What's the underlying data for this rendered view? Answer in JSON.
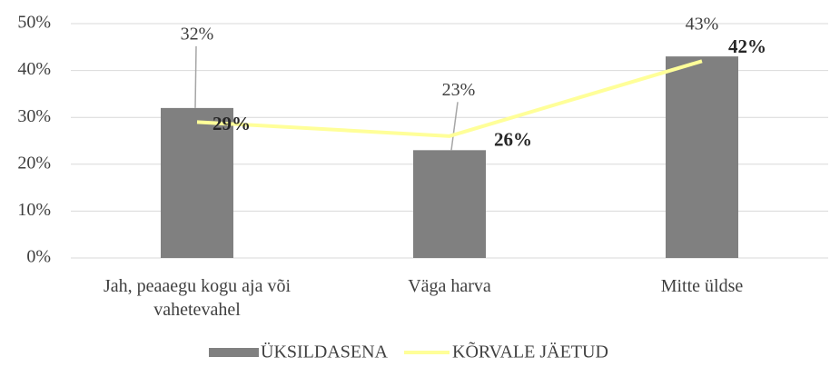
{
  "chart_data": {
    "type": "bar",
    "categories": [
      "Jah, peaaegu kogu aja või vahetevahel",
      "Väga harva",
      "Mitte üldse"
    ],
    "series": [
      {
        "name": "ÜKSILDASENA",
        "type": "bar",
        "color": "#808080",
        "values": [
          32,
          23,
          43
        ],
        "value_labels": [
          "32%",
          "23%",
          "43%"
        ]
      },
      {
        "name": "KÕRVALE JÄETUD",
        "type": "line",
        "color": "#ffff99",
        "values": [
          29,
          26,
          42
        ],
        "value_labels": [
          "29%",
          "26%",
          "42%"
        ]
      }
    ],
    "ylim": [
      0,
      50
    ],
    "yticks": [
      {
        "value": 0,
        "label": "0%"
      },
      {
        "value": 10,
        "label": "10%"
      },
      {
        "value": 20,
        "label": "20%"
      },
      {
        "value": 30,
        "label": "30%"
      },
      {
        "value": 40,
        "label": "40%"
      },
      {
        "value": 50,
        "label": "50%"
      }
    ],
    "grid": true,
    "legend": "bottom"
  }
}
